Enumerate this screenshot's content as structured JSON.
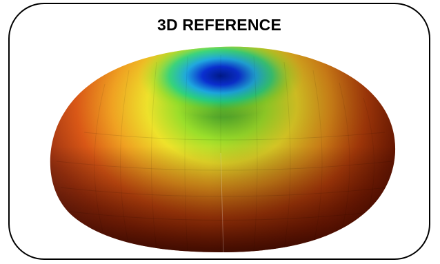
{
  "figure": {
    "title": "3D REFERENCE",
    "subject": "radiation-pattern-torus"
  }
}
